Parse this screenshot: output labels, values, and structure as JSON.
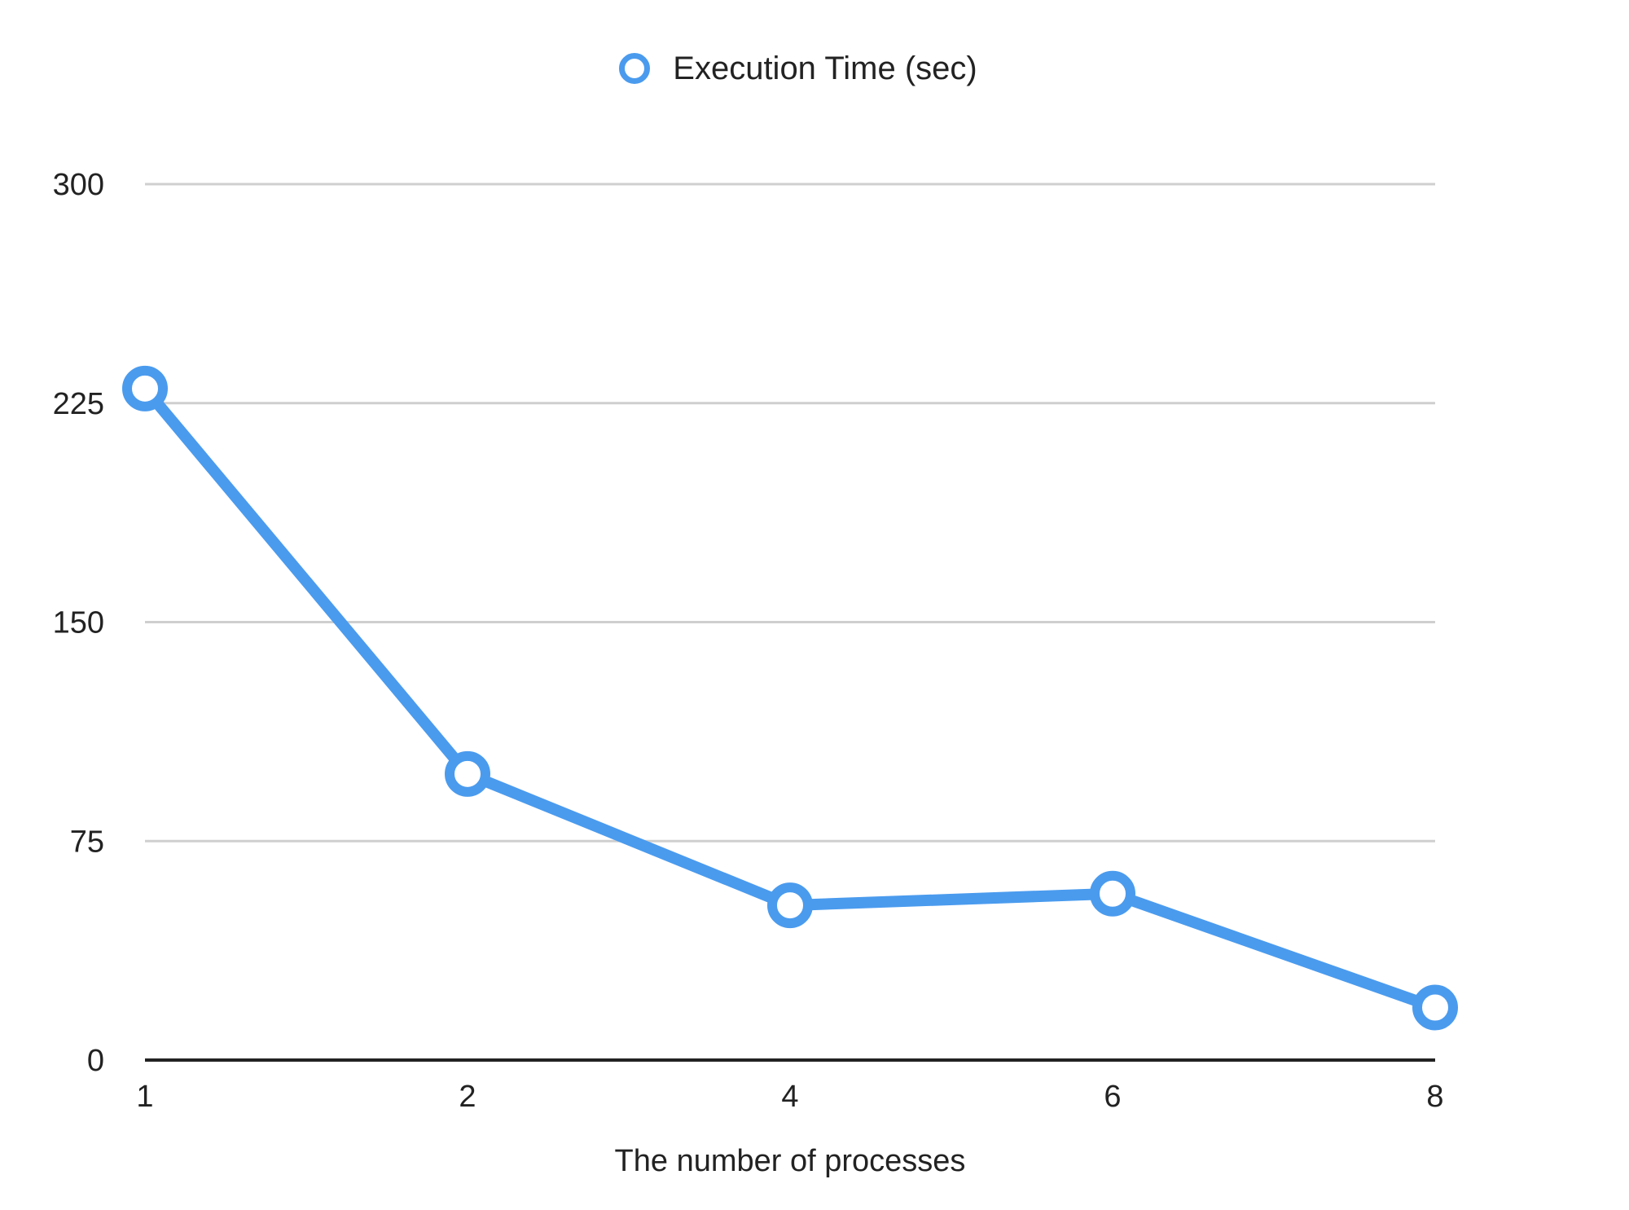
{
  "chart_data": {
    "type": "line",
    "title": "",
    "xlabel": "The number of processes",
    "ylabel": "",
    "categories": [
      "1",
      "2",
      "4",
      "6",
      "8"
    ],
    "series": [
      {
        "name": "Execution Time (sec)",
        "values": [
          230,
          98,
          53,
          57,
          18
        ]
      }
    ],
    "ylim": [
      0,
      300
    ],
    "yticks": [
      0,
      75,
      150,
      225,
      300
    ],
    "grid": true,
    "legend": "top",
    "colors": {
      "series": "#4A9BEE",
      "grid": "#cfcfcf",
      "axis": "#222222",
      "marker_fill": "#ffffff"
    }
  }
}
